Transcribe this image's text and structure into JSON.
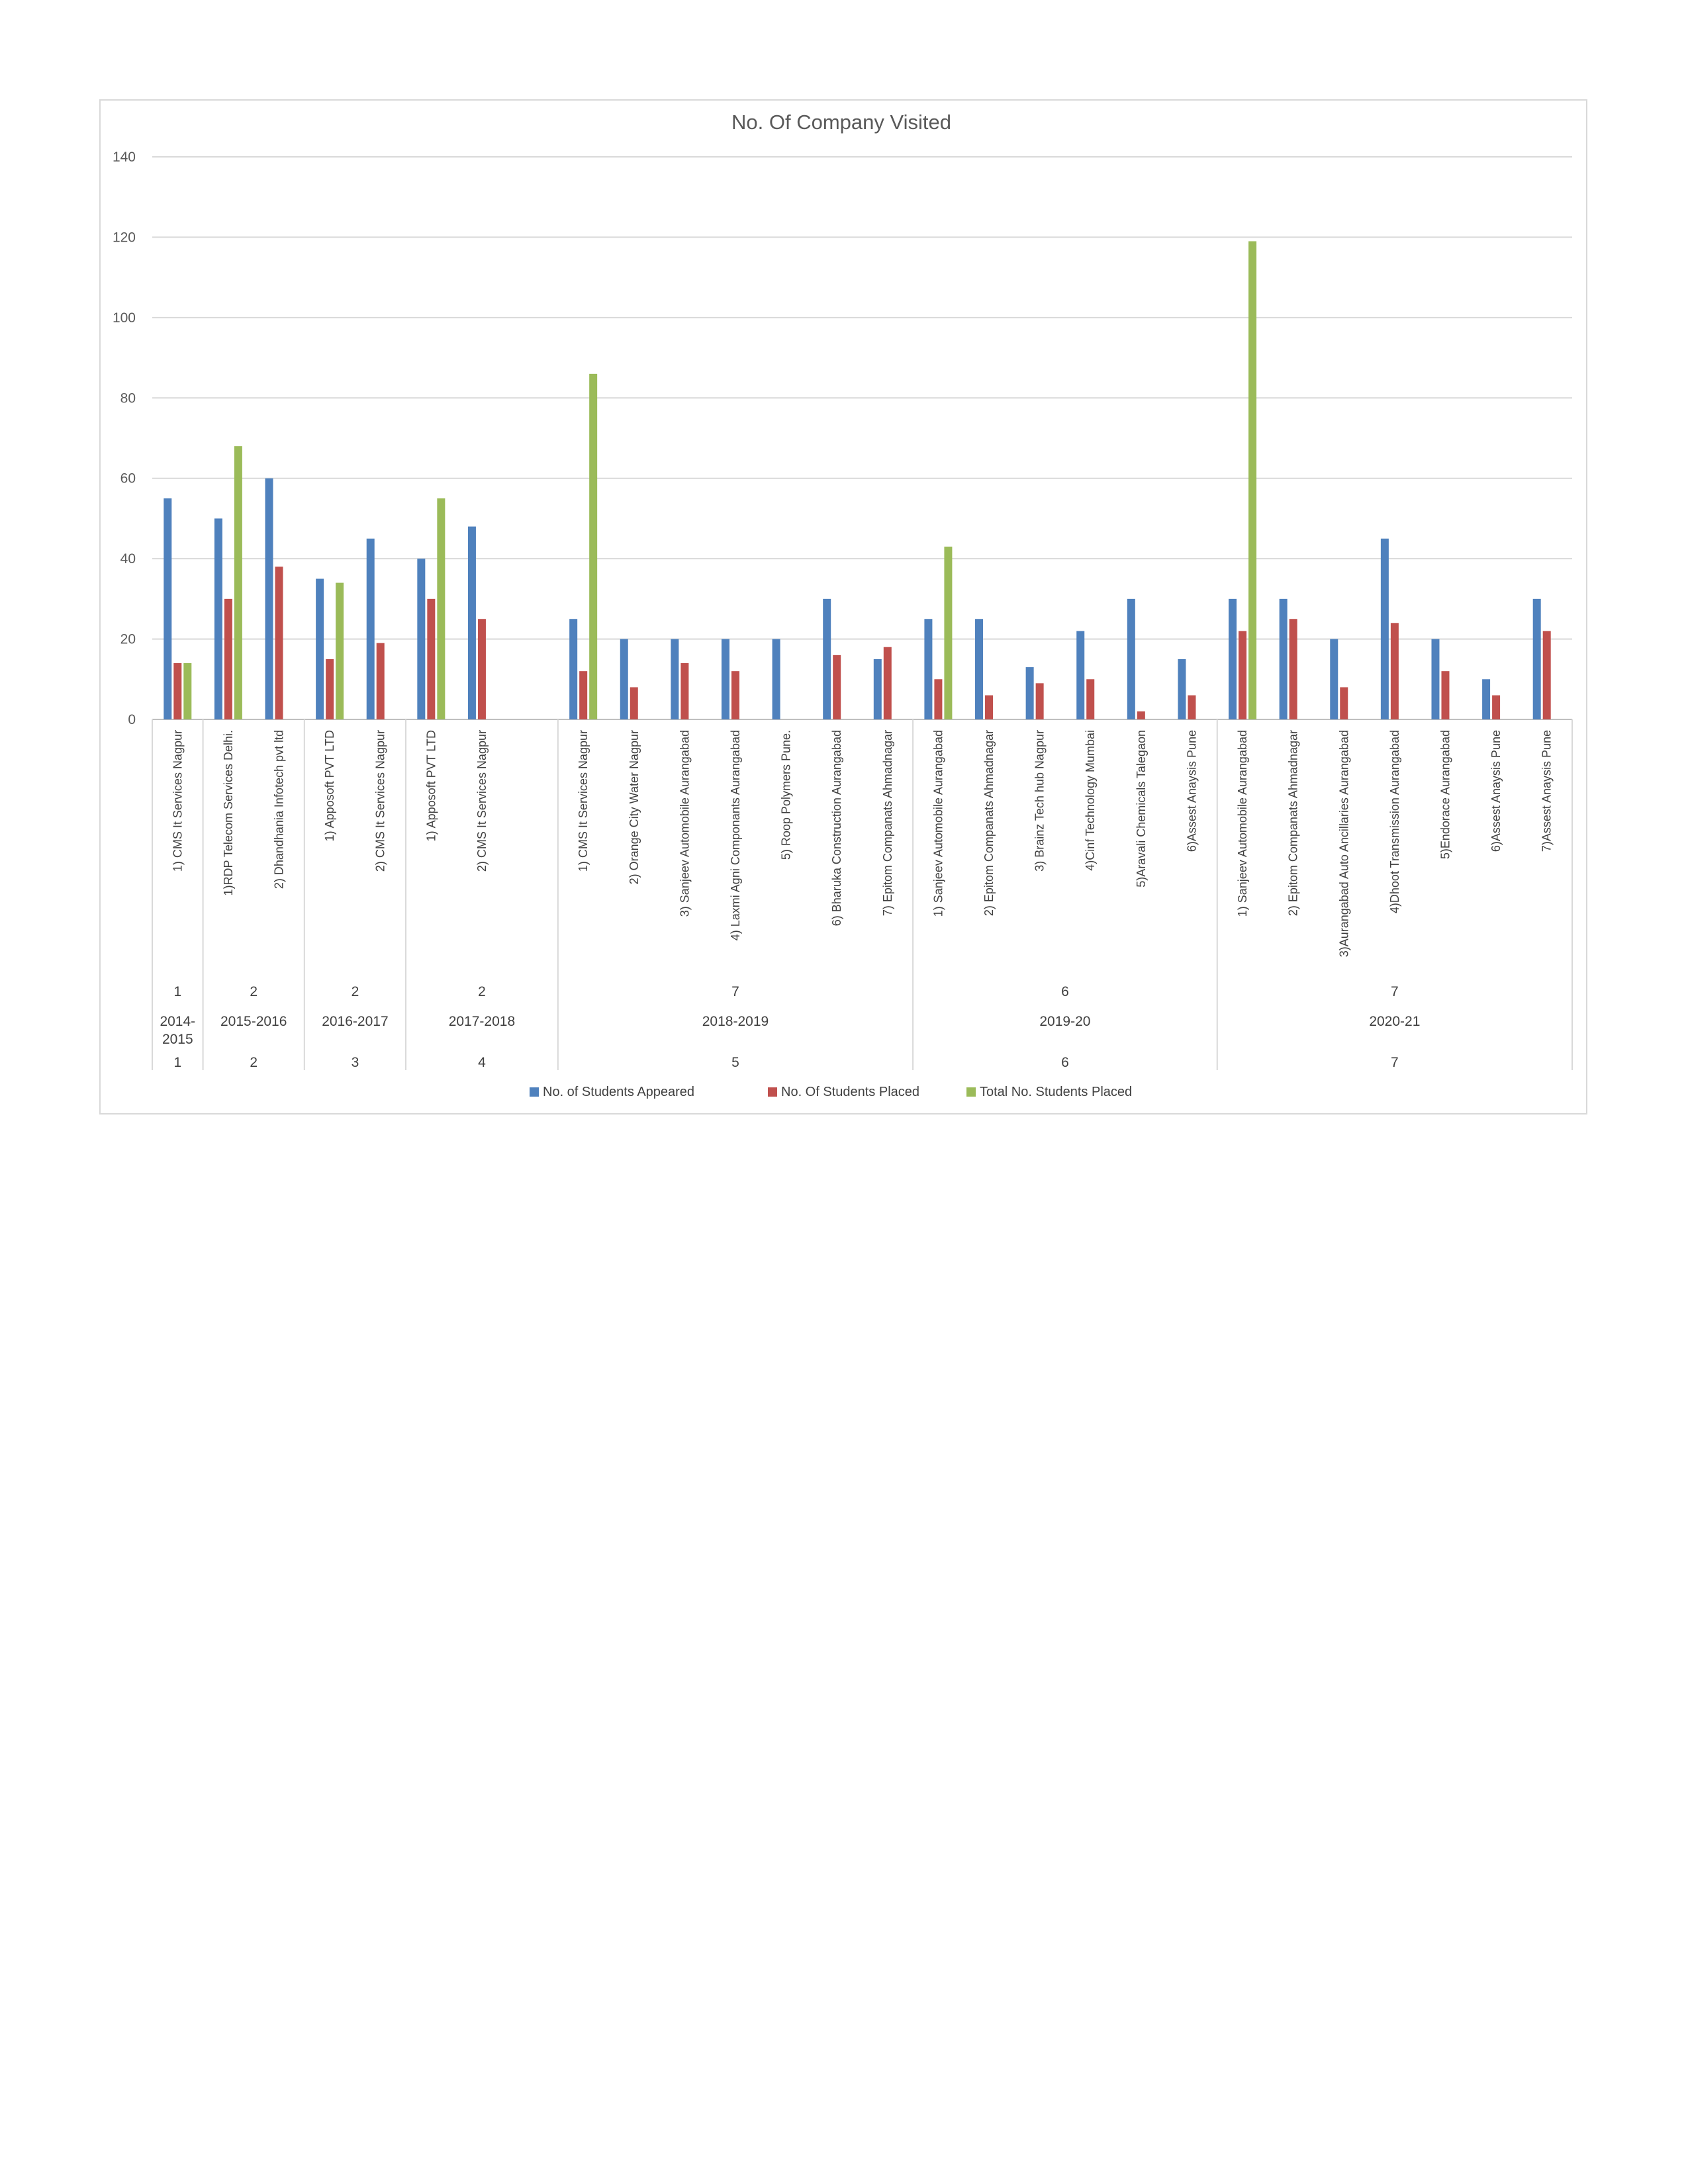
{
  "chart_data": {
    "type": "bar",
    "title": "No. Of Company Visited",
    "xlabel": "",
    "ylabel": "",
    "ylim": [
      0,
      140
    ],
    "yticks": [
      0,
      20,
      40,
      60,
      80,
      100,
      120,
      140
    ],
    "grid": true,
    "legend_position": "bottom",
    "colors": {
      "appeared": "#4f81bd",
      "placed": "#c0504d",
      "total": "#9bbb59",
      "grid": "#d9d9d9",
      "axis": "#bfbfbf"
    },
    "categories": [
      "1) CMS It Services Nagpur",
      "1)RDP Telecom Services Delhi.",
      "2) Dhandhania Infotech pvt ltd",
      "1) Apposoft PVT LTD",
      "2) CMS It Services Nagpur",
      "1) Apposoft PVT LTD",
      "2) CMS It Services Nagpur",
      "",
      "1) CMS It Services Nagpur",
      "2) Orange City Water Nagpur",
      "3) Sanjeev Automobile Aurangabad",
      "4) Laxmi Agni Componants Aurangabad",
      "5) Roop Polymers Pune.",
      "6) Bharuka Construction Aurangabad",
      "7) Epitom Companats Ahmadnagar",
      "1) Sanjeev Automobile Aurangabad",
      "2) Epitom Companats Ahmadnagar",
      "3) Brainz Tech hub Nagpur",
      "4)Cinf Technology Mumbai",
      "5)Aravali Chemicals Talegaon",
      "6)Assest Anaysis Pune",
      "1) Sanjeev Automobile Aurangabad",
      "2) Epitom Companats Ahmadnagar",
      "3)Aurangabad Auto Ancillaries Aurangabad",
      "4)Dhoot Transmission Aurangabad",
      "5)Endorace Aurangabad",
      "6)Assest Anaysis Pune",
      "7)Assest Anaysis Pune"
    ],
    "series": [
      {
        "name": "No. of Students Appeared",
        "values": [
          55,
          50,
          60,
          35,
          45,
          40,
          48,
          null,
          25,
          20,
          20,
          20,
          20,
          30,
          15,
          25,
          25,
          13,
          22,
          30,
          15,
          30,
          30,
          20,
          45,
          20,
          10,
          30
        ]
      },
      {
        "name": "No. Of Students Placed",
        "values": [
          14,
          30,
          38,
          15,
          19,
          30,
          25,
          null,
          12,
          8,
          14,
          12,
          null,
          16,
          18,
          10,
          6,
          9,
          10,
          2,
          6,
          22,
          25,
          8,
          24,
          12,
          6,
          22
        ]
      },
      {
        "name": "Total No. Students Placed",
        "values": [
          14,
          68,
          null,
          34,
          null,
          55,
          null,
          null,
          86,
          null,
          null,
          null,
          null,
          null,
          null,
          43,
          null,
          null,
          null,
          null,
          null,
          119,
          null,
          null,
          null,
          null,
          null,
          null
        ]
      }
    ],
    "groups": [
      {
        "count": "1",
        "year": "2014-2015",
        "year_line1": "2014-",
        "year_line2": "2015",
        "index": "1",
        "start": 0,
        "end": 0
      },
      {
        "count": "2",
        "year": "2015-2016",
        "index": "2",
        "start": 1,
        "end": 2
      },
      {
        "count": "2",
        "year": "2016-2017",
        "index": "3",
        "start": 3,
        "end": 4
      },
      {
        "count": "2",
        "year": "2017-2018",
        "index": "4",
        "start": 5,
        "end": 7
      },
      {
        "count": "7",
        "year": "2018-2019",
        "index": "5",
        "start": 8,
        "end": 14
      },
      {
        "count": "6",
        "year": "2019-20",
        "index": "6",
        "start": 15,
        "end": 20
      },
      {
        "count": "7",
        "year": "2020-21",
        "index": "7",
        "start": 21,
        "end": 27
      }
    ]
  }
}
